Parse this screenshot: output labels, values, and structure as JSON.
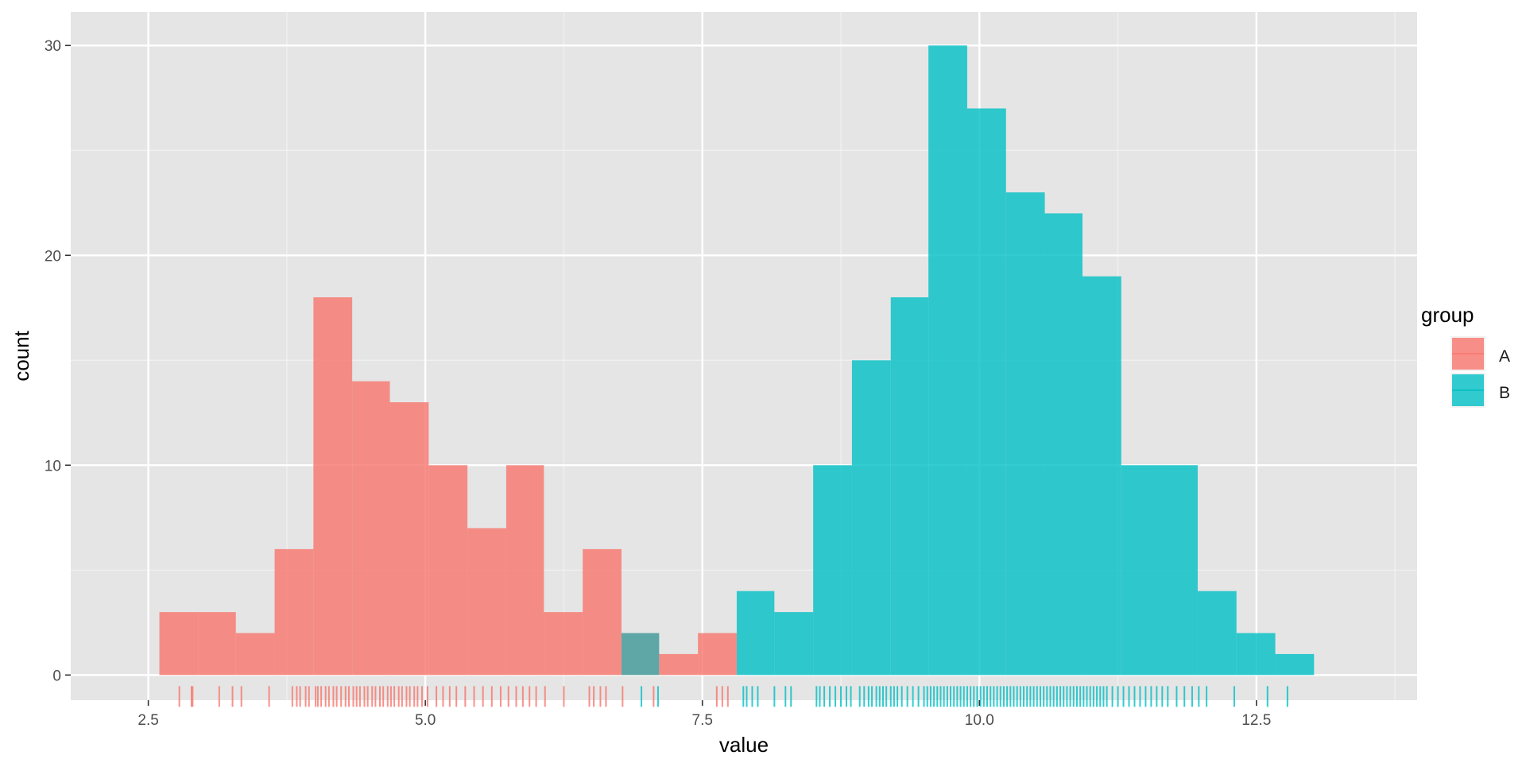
{
  "chart_data": {
    "type": "bar",
    "xlabel": "value",
    "ylabel": "count",
    "xlim": [
      1.8,
      13.95
    ],
    "ylim": [
      -1.2,
      31.6
    ],
    "x_ticks": [
      2.5,
      5.0,
      7.5,
      10.0,
      12.5
    ],
    "x_tick_labels": [
      "2.5",
      "5.0",
      "7.5",
      "10.0",
      "12.5"
    ],
    "y_ticks": [
      0,
      10,
      20,
      30
    ],
    "y_tick_labels": [
      "0",
      "10",
      "20",
      "30"
    ],
    "grid": true,
    "legend": {
      "title": "group",
      "position": "right",
      "entries": [
        "A",
        "B"
      ]
    },
    "colors": {
      "A": "#F8766D",
      "B": "#00BFC4",
      "panel": "#E5E5E5",
      "overlap": "#5FA7A7"
    },
    "bin_width": 0.347,
    "series": [
      {
        "name": "A",
        "bins": [
          {
            "x0": 2.6,
            "x1": 2.95,
            "count": 3
          },
          {
            "x0": 2.95,
            "x1": 3.29,
            "count": 3
          },
          {
            "x0": 3.29,
            "x1": 3.64,
            "count": 2
          },
          {
            "x0": 3.64,
            "x1": 3.99,
            "count": 6
          },
          {
            "x0": 3.99,
            "x1": 4.34,
            "count": 18
          },
          {
            "x0": 4.34,
            "x1": 4.68,
            "count": 14
          },
          {
            "x0": 4.68,
            "x1": 5.03,
            "count": 13
          },
          {
            "x0": 5.03,
            "x1": 5.38,
            "count": 10
          },
          {
            "x0": 5.38,
            "x1": 5.73,
            "count": 7
          },
          {
            "x0": 5.73,
            "x1": 6.07,
            "count": 10
          },
          {
            "x0": 6.07,
            "x1": 6.42,
            "count": 3
          },
          {
            "x0": 6.42,
            "x1": 6.77,
            "count": 6
          },
          {
            "x0": 7.11,
            "x1": 7.46,
            "count": 1
          },
          {
            "x0": 7.46,
            "x1": 7.81,
            "count": 2
          }
        ],
        "rug": [
          2.78,
          2.89,
          2.9,
          3.14,
          3.26,
          3.34,
          3.59,
          3.8,
          3.84,
          3.87,
          3.92,
          3.95,
          4.01,
          4.03,
          4.06,
          4.1,
          4.13,
          4.17,
          4.2,
          4.24,
          4.28,
          4.31,
          4.35,
          4.38,
          4.41,
          4.45,
          4.48,
          4.52,
          4.55,
          4.59,
          4.62,
          4.66,
          4.69,
          4.72,
          4.76,
          4.79,
          4.83,
          4.86,
          4.9,
          4.93,
          4.97,
          5.02,
          5.1,
          5.16,
          5.22,
          5.28,
          5.36,
          5.44,
          5.52,
          5.6,
          5.68,
          5.75,
          5.82,
          5.88,
          5.94,
          6.0,
          6.08,
          6.25,
          6.48,
          6.52,
          6.58,
          6.63,
          6.78,
          7.06,
          7.63,
          7.68,
          7.73
        ]
      },
      {
        "name": "B",
        "bins": [
          {
            "x0": 6.77,
            "x1": 7.11,
            "count": 2
          },
          {
            "x0": 7.81,
            "x1": 8.15,
            "count": 4
          },
          {
            "x0": 8.15,
            "x1": 8.5,
            "count": 3
          },
          {
            "x0": 8.5,
            "x1": 8.85,
            "count": 10
          },
          {
            "x0": 8.85,
            "x1": 9.2,
            "count": 15
          },
          {
            "x0": 9.2,
            "x1": 9.54,
            "count": 18
          },
          {
            "x0": 9.54,
            "x1": 9.89,
            "count": 30
          },
          {
            "x0": 9.89,
            "x1": 10.24,
            "count": 27
          },
          {
            "x0": 10.24,
            "x1": 10.59,
            "count": 23
          },
          {
            "x0": 10.59,
            "x1": 10.93,
            "count": 22
          },
          {
            "x0": 10.93,
            "x1": 11.28,
            "count": 19
          },
          {
            "x0": 11.28,
            "x1": 11.63,
            "count": 10
          },
          {
            "x0": 11.63,
            "x1": 11.97,
            "count": 10
          },
          {
            "x0": 11.97,
            "x1": 12.32,
            "count": 4
          },
          {
            "x0": 12.32,
            "x1": 12.67,
            "count": 2
          },
          {
            "x0": 12.67,
            "x1": 13.02,
            "count": 1
          }
        ],
        "rug": [
          6.95,
          7.1,
          7.87,
          7.9,
          7.95,
          8.0,
          8.15,
          8.25,
          8.3,
          8.53,
          8.56,
          8.6,
          8.65,
          8.7,
          8.75,
          8.8,
          8.84,
          8.92,
          8.96,
          9.0,
          9.03,
          9.07,
          9.1,
          9.13,
          9.16,
          9.2,
          9.23,
          9.26,
          9.3,
          9.35,
          9.4,
          9.45,
          9.5,
          9.53,
          9.56,
          9.59,
          9.62,
          9.65,
          9.68,
          9.71,
          9.74,
          9.77,
          9.8,
          9.83,
          9.86,
          9.89,
          9.92,
          9.95,
          9.98,
          10.01,
          10.04,
          10.07,
          10.1,
          10.13,
          10.16,
          10.19,
          10.22,
          10.25,
          10.28,
          10.31,
          10.34,
          10.37,
          10.4,
          10.43,
          10.46,
          10.49,
          10.52,
          10.55,
          10.58,
          10.61,
          10.64,
          10.67,
          10.7,
          10.73,
          10.76,
          10.79,
          10.82,
          10.85,
          10.88,
          10.91,
          10.94,
          10.97,
          11.0,
          11.03,
          11.06,
          11.09,
          11.12,
          11.15,
          11.2,
          11.25,
          11.3,
          11.35,
          11.4,
          11.45,
          11.5,
          11.55,
          11.6,
          11.65,
          11.7,
          11.78,
          11.85,
          11.92,
          11.98,
          12.05,
          12.3,
          12.6,
          12.78
        ]
      }
    ]
  }
}
